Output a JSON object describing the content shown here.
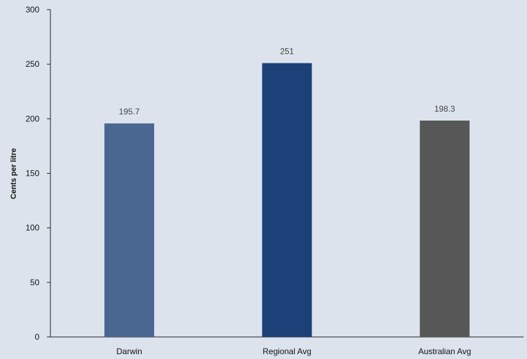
{
  "chart_data": {
    "type": "bar",
    "categories": [
      "Darwin",
      "Regional Avg",
      "Australian Avg"
    ],
    "values": [
      195.7,
      251,
      198.3
    ],
    "data_labels": [
      "195.7",
      "251",
      "198.3"
    ],
    "bar_colors": [
      "#4a6791",
      "#1c4078",
      "#575757"
    ],
    "title": "",
    "xlabel": "",
    "ylabel": "Cents per litre",
    "ylim": [
      0,
      300
    ],
    "yticks": [
      0,
      50,
      100,
      150,
      200,
      250,
      300
    ],
    "ytick_labels": [
      "0",
      "50",
      "100",
      "150",
      "200",
      "250",
      "300"
    ],
    "grid": false,
    "legend": "none"
  },
  "colors": {
    "background": "#dce3ed",
    "axis": "#222222"
  }
}
